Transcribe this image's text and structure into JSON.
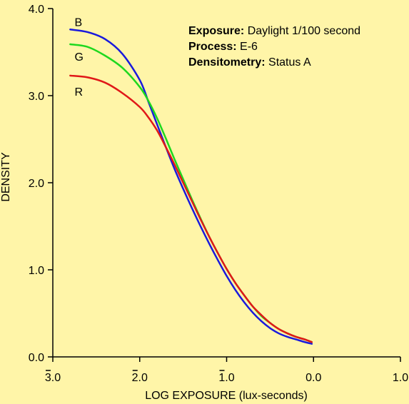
{
  "chart_data": {
    "type": "line",
    "background": "#fff5a8",
    "xlabel": "LOG EXPOSURE (lux-seconds)",
    "ylabel": "DENSITY",
    "xlim": [
      -3.0,
      1.0
    ],
    "ylim": [
      0.0,
      4.0
    ],
    "grid": false,
    "x_ticks": [
      {
        "value": -3.0,
        "label": "3.0",
        "bar": true
      },
      {
        "value": -2.0,
        "label": "2.0",
        "bar": true
      },
      {
        "value": -1.0,
        "label": "1.0",
        "bar": true
      },
      {
        "value": 0.0,
        "label": "0.0",
        "bar": false
      },
      {
        "value": 1.0,
        "label": "1.0",
        "bar": false
      }
    ],
    "y_ticks": [
      {
        "value": 0.0,
        "label": "0.0"
      },
      {
        "value": 1.0,
        "label": "1.0"
      },
      {
        "value": 2.0,
        "label": "2.0"
      },
      {
        "value": 3.0,
        "label": "3.0"
      },
      {
        "value": 4.0,
        "label": "4.0"
      }
    ],
    "annotations": [
      {
        "bold": "Exposure:",
        "text": " Daylight 1/100 second"
      },
      {
        "bold": "Process:",
        "text": " E-6"
      },
      {
        "bold": "Densitometry:",
        "text": " Status A"
      }
    ],
    "series": [
      {
        "name": "B",
        "color": "#1a1adc",
        "label_at": [
          -2.75,
          3.85
        ],
        "x": [
          -2.8,
          -2.6,
          -2.4,
          -2.2,
          -2.0,
          -1.9,
          -1.8,
          -1.7,
          -1.6,
          -1.5,
          -1.4,
          -1.3,
          -1.2,
          -1.1,
          -1.0,
          -0.9,
          -0.8,
          -0.7,
          -0.6,
          -0.5,
          -0.4,
          -0.3,
          -0.2,
          -0.1,
          -0.02
        ],
        "y": [
          3.76,
          3.73,
          3.65,
          3.48,
          3.18,
          2.93,
          2.67,
          2.41,
          2.16,
          1.93,
          1.71,
          1.5,
          1.3,
          1.11,
          0.93,
          0.77,
          0.63,
          0.51,
          0.41,
          0.33,
          0.27,
          0.23,
          0.2,
          0.17,
          0.15
        ]
      },
      {
        "name": "G",
        "color": "#1ed81e",
        "label_at": [
          -2.75,
          3.45
        ],
        "x": [
          -2.8,
          -2.6,
          -2.4,
          -2.2,
          -2.0,
          -1.9,
          -1.8,
          -1.7,
          -1.6,
          -1.5,
          -1.4,
          -1.3,
          -1.2,
          -1.1,
          -1.0,
          -0.9,
          -0.8,
          -0.7,
          -0.6,
          -0.5,
          -0.4,
          -0.3,
          -0.2,
          -0.1,
          -0.02
        ],
        "y": [
          3.59,
          3.56,
          3.46,
          3.32,
          3.1,
          2.94,
          2.74,
          2.51,
          2.27,
          2.04,
          1.81,
          1.59,
          1.38,
          1.19,
          1.01,
          0.85,
          0.71,
          0.58,
          0.47,
          0.39,
          0.32,
          0.27,
          0.23,
          0.2,
          0.17
        ]
      },
      {
        "name": "R",
        "color": "#e01818",
        "label_at": [
          -2.75,
          3.05
        ],
        "x": [
          -2.8,
          -2.6,
          -2.4,
          -2.2,
          -2.0,
          -1.9,
          -1.8,
          -1.7,
          -1.6,
          -1.5,
          -1.4,
          -1.3,
          -1.2,
          -1.1,
          -1.0,
          -0.9,
          -0.8,
          -0.7,
          -0.6,
          -0.5,
          -0.4,
          -0.3,
          -0.2,
          -0.1,
          -0.02
        ],
        "y": [
          3.23,
          3.21,
          3.15,
          3.03,
          2.87,
          2.75,
          2.6,
          2.41,
          2.21,
          2.0,
          1.79,
          1.58,
          1.38,
          1.19,
          1.01,
          0.85,
          0.71,
          0.58,
          0.48,
          0.39,
          0.32,
          0.27,
          0.23,
          0.2,
          0.17
        ]
      }
    ]
  }
}
